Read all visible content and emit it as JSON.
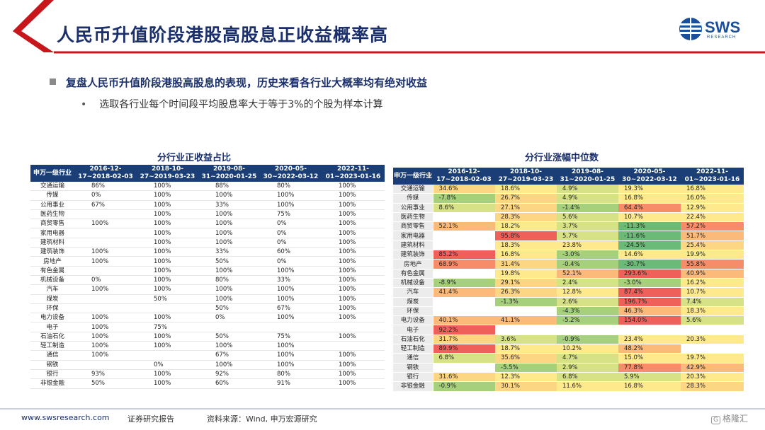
{
  "slide": {
    "title": "人民币升值阶段港股高股息正收益概率高",
    "logo_text": "SWS",
    "logo_sub": "RESEARCH",
    "bullet1": "复盘人民币升值阶段港股高股息的表现，历史来看各行业大概率均有绝对收益",
    "bullet2": "选取各行业每个时间段平均股息率大于等于3%的个股为样本计算"
  },
  "table1": {
    "title": "分行业正收益占比",
    "headers": [
      "申万一级行业",
      "2016-12-17~2018-02-03",
      "2018-10-27~2019-03-23",
      "2019-08-31~2020-01-25",
      "2020-05-30~2022-03-12",
      "2022-11-01~2023-01-16"
    ],
    "rows": [
      [
        "交通运输",
        "86%",
        "100%",
        "88%",
        "80%",
        "100%"
      ],
      [
        "传媒",
        "0%",
        "100%",
        "100%",
        "100%",
        "100%"
      ],
      [
        "公用事业",
        "67%",
        "100%",
        "33%",
        "100%",
        "100%"
      ],
      [
        "医药生物",
        "",
        "100%",
        "100%",
        "75%",
        "100%"
      ],
      [
        "商贸零售",
        "100%",
        "100%",
        "100%",
        "0%",
        "100%"
      ],
      [
        "家用电器",
        "",
        "100%",
        "100%",
        "0%",
        "100%"
      ],
      [
        "建筑材料",
        "",
        "100%",
        "100%",
        "0%",
        "100%"
      ],
      [
        "建筑装饰",
        "100%",
        "100%",
        "33%",
        "60%",
        "100%"
      ],
      [
        "房地产",
        "100%",
        "100%",
        "50%",
        "0%",
        "100%"
      ],
      [
        "有色金属",
        "",
        "100%",
        "100%",
        "100%",
        "100%"
      ],
      [
        "机械设备",
        "0%",
        "100%",
        "80%",
        "33%",
        "100%"
      ],
      [
        "汽车",
        "100%",
        "100%",
        "100%",
        "100%",
        "100%"
      ],
      [
        "煤炭",
        "",
        "50%",
        "100%",
        "100%",
        "100%"
      ],
      [
        "环保",
        "",
        "",
        "50%",
        "67%",
        "100%"
      ],
      [
        "电力设备",
        "100%",
        "100%",
        "0%",
        "100%",
        "100%"
      ],
      [
        "电子",
        "100%",
        "75%",
        "",
        "",
        ""
      ],
      [
        "石油石化",
        "100%",
        "100%",
        "50%",
        "75%",
        "100%"
      ],
      [
        "轻工制造",
        "100%",
        "100%",
        "100%",
        "100%",
        ""
      ],
      [
        "通信",
        "100%",
        "",
        "67%",
        "100%",
        "100%"
      ],
      [
        "钢铁",
        "",
        "0%",
        "100%",
        "100%",
        "100%"
      ],
      [
        "银行",
        "93%",
        "100%",
        "92%",
        "80%",
        "100%"
      ],
      [
        "非银金融",
        "50%",
        "100%",
        "60%",
        "91%",
        "100%"
      ]
    ]
  },
  "table2": {
    "title": "分行业涨幅中位数",
    "headers": [
      "申万一级行业",
      "2016-12-17~2018-02-03",
      "2018-10-27~2019-03-23",
      "2019-08-31~2020-01-25",
      "2020-05-30~2022-03-12",
      "2022-11-01~2023-01-16"
    ],
    "rows": [
      [
        "交通运输",
        "34.6%",
        "18.6%",
        "4.9%",
        "19.3%",
        "16.8%"
      ],
      [
        "传媒",
        "-7.8%",
        "26.7%",
        "4.9%",
        "16.8%",
        "16.0%"
      ],
      [
        "公用事业",
        "8.6%",
        "27.1%",
        "-1.4%",
        "64.4%",
        "12.9%"
      ],
      [
        "医药生物",
        "",
        "28.3%",
        "5.6%",
        "10.7%",
        "22.4%"
      ],
      [
        "商贸零售",
        "52.1%",
        "18.2%",
        "3.7%",
        "-11.3%",
        "57.2%"
      ],
      [
        "家用电器",
        "",
        "95.8%",
        "5.7%",
        "-11.6%",
        "51.7%"
      ],
      [
        "建筑材料",
        "",
        "18.3%",
        "23.8%",
        "-24.5%",
        "25.4%"
      ],
      [
        "建筑装饰",
        "85.2%",
        "16.8%",
        "-3.0%",
        "14.6%",
        "19.9%"
      ],
      [
        "房地产",
        "68.9%",
        "31.4%",
        "-0.4%",
        "-30.7%",
        "55.8%"
      ],
      [
        "有色金属",
        "",
        "19.8%",
        "52.1%",
        "293.6%",
        "40.9%"
      ],
      [
        "机械设备",
        "-8.9%",
        "29.1%",
        "2.4%",
        "-3.0%",
        "16.2%"
      ],
      [
        "汽车",
        "41.4%",
        "26.3%",
        "12.8%",
        "87.4%",
        "10.7%"
      ],
      [
        "煤炭",
        "",
        "-1.3%",
        "2.6%",
        "196.7%",
        "7.4%"
      ],
      [
        "环保",
        "",
        "",
        "-4.3%",
        "46.3%",
        "18.3%"
      ],
      [
        "电力设备",
        "40.1%",
        "41.1%",
        "-5.2%",
        "154.0%",
        "5.6%"
      ],
      [
        "电子",
        "92.2%",
        "",
        "",
        "",
        ""
      ],
      [
        "石油石化",
        "31.7%",
        "3.6%",
        "-0.9%",
        "23.4%",
        "20.3%"
      ],
      [
        "轻工制造",
        "89.9%",
        "18.7%",
        "10.2%",
        "48.2%",
        ""
      ],
      [
        "通信",
        "6.8%",
        "35.6%",
        "4.7%",
        "15.0%",
        "19.7%"
      ],
      [
        "钢铁",
        "",
        "-5.5%",
        "2.9%",
        "77.8%",
        "42.9%"
      ],
      [
        "银行",
        "31.6%",
        "12.3%",
        "6.8%",
        "5.9%",
        "20.3%"
      ],
      [
        "非银金融",
        "-0.9%",
        "30.1%",
        "11.6%",
        "16.8%",
        "28.3%"
      ]
    ],
    "colors": {
      "deep_red": "#f0605a",
      "red": "#f78c6a",
      "orange": "#fbb97a",
      "light_orange": "#fdd683",
      "yellow": "#fee98c",
      "light_green": "#d6e285",
      "green": "#a7d07d",
      "deep_green": "#6cba78"
    }
  },
  "footer": {
    "website": "www.swsresearch.com",
    "report_type": "证券研究报告",
    "source": "资料来源：Wind, 申万宏源研究",
    "watermark": "格隆汇"
  }
}
